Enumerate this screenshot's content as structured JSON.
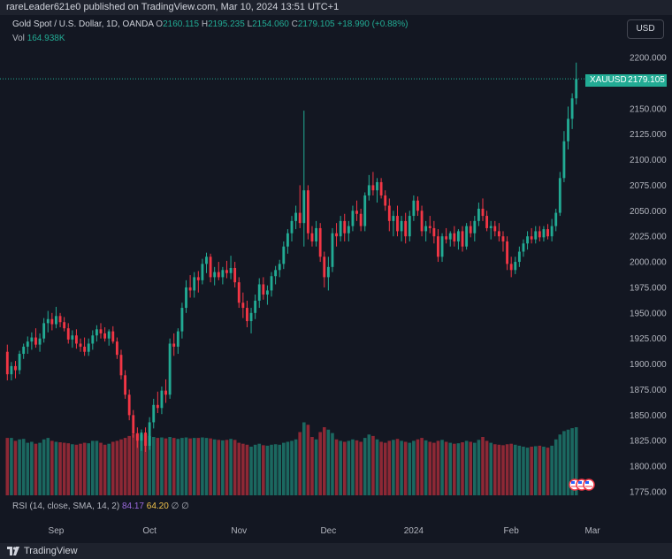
{
  "header": {
    "published_text": "rareLeader621e0 published on TradingView.com, Mar 10, 2024 13:51 UTC+1"
  },
  "legend": {
    "symbol_desc": "Gold Spot / U.S. Dollar, 1D, OANDA",
    "o_label": "O",
    "o_value": "2160.115",
    "h_label": "H",
    "h_value": "2195.235",
    "l_label": "L",
    "l_value": "2154.060",
    "c_label": "C",
    "c_value": "2179.105",
    "change": "+18.990 (+0.88%)",
    "vol_label": "Vol",
    "vol_value": "164.938K"
  },
  "currency_button": "USD",
  "price_tag": {
    "symbol": "XAUUSD",
    "value": "2179.105"
  },
  "rsi": {
    "label": "RSI (14, close, SMA, 14, 2)",
    "value1": "84.17",
    "value2": "64.20",
    "icon1": "∅",
    "icon2": "∅"
  },
  "footer": {
    "brand": "TradingView"
  },
  "colors": {
    "background": "#131722",
    "up": "#22ab94",
    "down": "#f23645",
    "up_volume": "#22ab94",
    "down_volume": "#f23645",
    "text": "#d1d4dc",
    "axis_text": "#b2b5be"
  },
  "chart_data": {
    "type": "candlestick",
    "symbol": "XAUUSD",
    "interval": "1D",
    "y_axis": {
      "ylim": [
        1765,
        2210
      ],
      "ticks": [
        1775,
        1800,
        1825,
        1850,
        1875,
        1900,
        1925,
        1950,
        1975,
        2000,
        2025,
        2050,
        2075,
        2100,
        2125,
        2150,
        2175,
        2200
      ],
      "tick_labels": [
        "1775.000",
        "1800.000",
        "1825.000",
        "1850.000",
        "1875.000",
        "1900.000",
        "1925.000",
        "1950.000",
        "1975.000",
        "2000.000",
        "2025.000",
        "2050.000",
        "2075.000",
        "2100.000",
        "2125.000",
        "2150.000",
        "2175.000",
        "2200.000"
      ],
      "position": "right"
    },
    "x_axis": {
      "labels": [
        "Sep",
        "Oct",
        "Nov",
        "Dec",
        "2024",
        "Feb",
        "Mar"
      ],
      "label_bar_index": [
        12,
        35,
        57,
        79,
        100,
        124,
        144
      ]
    },
    "last_price": 2179.105,
    "volume_ylim": [
      0,
      200
    ],
    "grid": false,
    "candles": [
      {
        "o": 1912,
        "h": 1919,
        "l": 1884,
        "c": 1890,
        "v": 118
      },
      {
        "o": 1890,
        "h": 1902,
        "l": 1884,
        "c": 1898,
        "v": 118
      },
      {
        "o": 1898,
        "h": 1903,
        "l": 1886,
        "c": 1894,
        "v": 112
      },
      {
        "o": 1894,
        "h": 1913,
        "l": 1890,
        "c": 1910,
        "v": 115
      },
      {
        "o": 1910,
        "h": 1920,
        "l": 1905,
        "c": 1917,
        "v": 116
      },
      {
        "o": 1917,
        "h": 1927,
        "l": 1910,
        "c": 1922,
        "v": 108
      },
      {
        "o": 1922,
        "h": 1931,
        "l": 1914,
        "c": 1926,
        "v": 110
      },
      {
        "o": 1926,
        "h": 1935,
        "l": 1916,
        "c": 1919,
        "v": 106
      },
      {
        "o": 1919,
        "h": 1930,
        "l": 1912,
        "c": 1925,
        "v": 108
      },
      {
        "o": 1925,
        "h": 1945,
        "l": 1921,
        "c": 1940,
        "v": 115
      },
      {
        "o": 1940,
        "h": 1952,
        "l": 1931,
        "c": 1944,
        "v": 118
      },
      {
        "o": 1944,
        "h": 1950,
        "l": 1933,
        "c": 1939,
        "v": 112
      },
      {
        "o": 1939,
        "h": 1956,
        "l": 1935,
        "c": 1947,
        "v": 110
      },
      {
        "o": 1947,
        "h": 1950,
        "l": 1936,
        "c": 1941,
        "v": 109
      },
      {
        "o": 1941,
        "h": 1946,
        "l": 1932,
        "c": 1935,
        "v": 108
      },
      {
        "o": 1935,
        "h": 1940,
        "l": 1920,
        "c": 1924,
        "v": 107
      },
      {
        "o": 1924,
        "h": 1933,
        "l": 1916,
        "c": 1928,
        "v": 105
      },
      {
        "o": 1928,
        "h": 1934,
        "l": 1915,
        "c": 1920,
        "v": 104
      },
      {
        "o": 1920,
        "h": 1925,
        "l": 1912,
        "c": 1917,
        "v": 106
      },
      {
        "o": 1917,
        "h": 1926,
        "l": 1908,
        "c": 1912,
        "v": 108
      },
      {
        "o": 1912,
        "h": 1925,
        "l": 1908,
        "c": 1920,
        "v": 107
      },
      {
        "o": 1920,
        "h": 1933,
        "l": 1914,
        "c": 1928,
        "v": 112
      },
      {
        "o": 1928,
        "h": 1938,
        "l": 1922,
        "c": 1934,
        "v": 112
      },
      {
        "o": 1934,
        "h": 1940,
        "l": 1925,
        "c": 1930,
        "v": 108
      },
      {
        "o": 1930,
        "h": 1936,
        "l": 1922,
        "c": 1925,
        "v": 104
      },
      {
        "o": 1925,
        "h": 1934,
        "l": 1918,
        "c": 1932,
        "v": 106
      },
      {
        "o": 1932,
        "h": 1937,
        "l": 1920,
        "c": 1922,
        "v": 110
      },
      {
        "o": 1922,
        "h": 1926,
        "l": 1905,
        "c": 1909,
        "v": 112
      },
      {
        "o": 1909,
        "h": 1914,
        "l": 1885,
        "c": 1889,
        "v": 115
      },
      {
        "o": 1889,
        "h": 1894,
        "l": 1866,
        "c": 1870,
        "v": 118
      },
      {
        "o": 1870,
        "h": 1875,
        "l": 1845,
        "c": 1850,
        "v": 122
      },
      {
        "o": 1850,
        "h": 1855,
        "l": 1828,
        "c": 1832,
        "v": 126
      },
      {
        "o": 1832,
        "h": 1838,
        "l": 1818,
        "c": 1825,
        "v": 128
      },
      {
        "o": 1825,
        "h": 1836,
        "l": 1815,
        "c": 1833,
        "v": 125
      },
      {
        "o": 1833,
        "h": 1838,
        "l": 1814,
        "c": 1820,
        "v": 126
      },
      {
        "o": 1820,
        "h": 1848,
        "l": 1816,
        "c": 1843,
        "v": 122
      },
      {
        "o": 1843,
        "h": 1866,
        "l": 1837,
        "c": 1860,
        "v": 120
      },
      {
        "o": 1860,
        "h": 1873,
        "l": 1852,
        "c": 1857,
        "v": 118
      },
      {
        "o": 1857,
        "h": 1878,
        "l": 1851,
        "c": 1874,
        "v": 119
      },
      {
        "o": 1874,
        "h": 1885,
        "l": 1862,
        "c": 1870,
        "v": 117
      },
      {
        "o": 1870,
        "h": 1925,
        "l": 1866,
        "c": 1920,
        "v": 120
      },
      {
        "o": 1920,
        "h": 1930,
        "l": 1908,
        "c": 1917,
        "v": 118
      },
      {
        "o": 1917,
        "h": 1935,
        "l": 1910,
        "c": 1932,
        "v": 116
      },
      {
        "o": 1932,
        "h": 1960,
        "l": 1925,
        "c": 1955,
        "v": 118
      },
      {
        "o": 1955,
        "h": 1982,
        "l": 1950,
        "c": 1975,
        "v": 119
      },
      {
        "o": 1975,
        "h": 1987,
        "l": 1965,
        "c": 1972,
        "v": 117
      },
      {
        "o": 1972,
        "h": 1990,
        "l": 1965,
        "c": 1985,
        "v": 118
      },
      {
        "o": 1985,
        "h": 1991,
        "l": 1970,
        "c": 1982,
        "v": 118
      },
      {
        "o": 1982,
        "h": 2003,
        "l": 1978,
        "c": 1998,
        "v": 119
      },
      {
        "o": 1998,
        "h": 2009,
        "l": 1989,
        "c": 2005,
        "v": 118
      },
      {
        "o": 2005,
        "h": 2008,
        "l": 1980,
        "c": 1985,
        "v": 117
      },
      {
        "o": 1985,
        "h": 1995,
        "l": 1977,
        "c": 1990,
        "v": 115
      },
      {
        "o": 1990,
        "h": 2000,
        "l": 1982,
        "c": 1985,
        "v": 114
      },
      {
        "o": 1985,
        "h": 1995,
        "l": 1978,
        "c": 1992,
        "v": 113
      },
      {
        "o": 1992,
        "h": 2001,
        "l": 1984,
        "c": 1989,
        "v": 114
      },
      {
        "o": 1989,
        "h": 2006,
        "l": 1983,
        "c": 1994,
        "v": 116
      },
      {
        "o": 1994,
        "h": 2000,
        "l": 1975,
        "c": 1980,
        "v": 114
      },
      {
        "o": 1980,
        "h": 1985,
        "l": 1955,
        "c": 1960,
        "v": 108
      },
      {
        "o": 1960,
        "h": 1970,
        "l": 1945,
        "c": 1955,
        "v": 106
      },
      {
        "o": 1955,
        "h": 1962,
        "l": 1936,
        "c": 1942,
        "v": 104
      },
      {
        "o": 1942,
        "h": 1955,
        "l": 1930,
        "c": 1950,
        "v": 100
      },
      {
        "o": 1950,
        "h": 1968,
        "l": 1944,
        "c": 1962,
        "v": 104
      },
      {
        "o": 1962,
        "h": 1984,
        "l": 1955,
        "c": 1978,
        "v": 106
      },
      {
        "o": 1978,
        "h": 1985,
        "l": 1963,
        "c": 1968,
        "v": 103
      },
      {
        "o": 1968,
        "h": 1977,
        "l": 1958,
        "c": 1972,
        "v": 102
      },
      {
        "o": 1972,
        "h": 1990,
        "l": 1966,
        "c": 1986,
        "v": 104
      },
      {
        "o": 1986,
        "h": 1996,
        "l": 1978,
        "c": 1992,
        "v": 105
      },
      {
        "o": 1992,
        "h": 2002,
        "l": 1985,
        "c": 1998,
        "v": 104
      },
      {
        "o": 1998,
        "h": 2020,
        "l": 1993,
        "c": 2015,
        "v": 108
      },
      {
        "o": 2015,
        "h": 2032,
        "l": 2008,
        "c": 2028,
        "v": 110
      },
      {
        "o": 2028,
        "h": 2045,
        "l": 2020,
        "c": 2040,
        "v": 112
      },
      {
        "o": 2040,
        "h": 2055,
        "l": 2032,
        "c": 2048,
        "v": 115
      },
      {
        "o": 2048,
        "h": 2075,
        "l": 2033,
        "c": 2038,
        "v": 130
      },
      {
        "o": 2038,
        "h": 2148,
        "l": 2015,
        "c": 2070,
        "v": 150
      },
      {
        "o": 2070,
        "h": 2075,
        "l": 2022,
        "c": 2028,
        "v": 145
      },
      {
        "o": 2028,
        "h": 2035,
        "l": 2015,
        "c": 2020,
        "v": 120
      },
      {
        "o": 2020,
        "h": 2040,
        "l": 2015,
        "c": 2033,
        "v": 115
      },
      {
        "o": 2033,
        "h": 2038,
        "l": 2000,
        "c": 2005,
        "v": 130
      },
      {
        "o": 2005,
        "h": 2010,
        "l": 1975,
        "c": 1985,
        "v": 140
      },
      {
        "o": 1985,
        "h": 2005,
        "l": 1972,
        "c": 1995,
        "v": 135
      },
      {
        "o": 1995,
        "h": 2033,
        "l": 1990,
        "c": 2028,
        "v": 128
      },
      {
        "o": 2028,
        "h": 2038,
        "l": 2015,
        "c": 2025,
        "v": 115
      },
      {
        "o": 2025,
        "h": 2045,
        "l": 2020,
        "c": 2040,
        "v": 112
      },
      {
        "o": 2040,
        "h": 2047,
        "l": 2020,
        "c": 2028,
        "v": 110
      },
      {
        "o": 2028,
        "h": 2040,
        "l": 2020,
        "c": 2035,
        "v": 112
      },
      {
        "o": 2035,
        "h": 2055,
        "l": 2030,
        "c": 2050,
        "v": 115
      },
      {
        "o": 2050,
        "h": 2060,
        "l": 2040,
        "c": 2047,
        "v": 113
      },
      {
        "o": 2047,
        "h": 2052,
        "l": 2030,
        "c": 2035,
        "v": 110
      },
      {
        "o": 2035,
        "h": 2068,
        "l": 2030,
        "c": 2065,
        "v": 118
      },
      {
        "o": 2065,
        "h": 2085,
        "l": 2060,
        "c": 2075,
        "v": 125
      },
      {
        "o": 2075,
        "h": 2088,
        "l": 2065,
        "c": 2070,
        "v": 122
      },
      {
        "o": 2070,
        "h": 2082,
        "l": 2058,
        "c": 2078,
        "v": 115
      },
      {
        "o": 2078,
        "h": 2082,
        "l": 2062,
        "c": 2065,
        "v": 110
      },
      {
        "o": 2065,
        "h": 2070,
        "l": 2050,
        "c": 2055,
        "v": 108
      },
      {
        "o": 2055,
        "h": 2062,
        "l": 2030,
        "c": 2040,
        "v": 112
      },
      {
        "o": 2040,
        "h": 2050,
        "l": 2025,
        "c": 2045,
        "v": 114
      },
      {
        "o": 2045,
        "h": 2055,
        "l": 2025,
        "c": 2030,
        "v": 116
      },
      {
        "o": 2030,
        "h": 2045,
        "l": 2020,
        "c": 2040,
        "v": 112
      },
      {
        "o": 2040,
        "h": 2048,
        "l": 2018,
        "c": 2025,
        "v": 110
      },
      {
        "o": 2025,
        "h": 2050,
        "l": 2020,
        "c": 2045,
        "v": 108
      },
      {
        "o": 2045,
        "h": 2065,
        "l": 2040,
        "c": 2060,
        "v": 112
      },
      {
        "o": 2060,
        "h": 2064,
        "l": 2045,
        "c": 2050,
        "v": 115
      },
      {
        "o": 2050,
        "h": 2055,
        "l": 2025,
        "c": 2030,
        "v": 118
      },
      {
        "o": 2030,
        "h": 2040,
        "l": 2020,
        "c": 2035,
        "v": 113
      },
      {
        "o": 2035,
        "h": 2045,
        "l": 2028,
        "c": 2033,
        "v": 110
      },
      {
        "o": 2033,
        "h": 2040,
        "l": 2018,
        "c": 2025,
        "v": 108
      },
      {
        "o": 2025,
        "h": 2032,
        "l": 2000,
        "c": 2005,
        "v": 112
      },
      {
        "o": 2005,
        "h": 2028,
        "l": 2000,
        "c": 2025,
        "v": 114
      },
      {
        "o": 2025,
        "h": 2033,
        "l": 2018,
        "c": 2022,
        "v": 110
      },
      {
        "o": 2022,
        "h": 2030,
        "l": 2015,
        "c": 2028,
        "v": 108
      },
      {
        "o": 2028,
        "h": 2035,
        "l": 2015,
        "c": 2020,
        "v": 106
      },
      {
        "o": 2020,
        "h": 2032,
        "l": 2012,
        "c": 2030,
        "v": 107
      },
      {
        "o": 2030,
        "h": 2035,
        "l": 2010,
        "c": 2015,
        "v": 109
      },
      {
        "o": 2015,
        "h": 2038,
        "l": 2012,
        "c": 2035,
        "v": 112
      },
      {
        "o": 2035,
        "h": 2040,
        "l": 2024,
        "c": 2028,
        "v": 110
      },
      {
        "o": 2028,
        "h": 2045,
        "l": 2020,
        "c": 2040,
        "v": 108
      },
      {
        "o": 2040,
        "h": 2058,
        "l": 2035,
        "c": 2052,
        "v": 114
      },
      {
        "o": 2052,
        "h": 2062,
        "l": 2040,
        "c": 2045,
        "v": 120
      },
      {
        "o": 2045,
        "h": 2050,
        "l": 2030,
        "c": 2033,
        "v": 112
      },
      {
        "o": 2033,
        "h": 2040,
        "l": 2022,
        "c": 2035,
        "v": 108
      },
      {
        "o": 2035,
        "h": 2040,
        "l": 2025,
        "c": 2030,
        "v": 105
      },
      {
        "o": 2030,
        "h": 2038,
        "l": 2020,
        "c": 2025,
        "v": 104
      },
      {
        "o": 2025,
        "h": 2030,
        "l": 2010,
        "c": 2020,
        "v": 103
      },
      {
        "o": 2020,
        "h": 2025,
        "l": 1992,
        "c": 1998,
        "v": 105
      },
      {
        "o": 1998,
        "h": 2005,
        "l": 1985,
        "c": 1992,
        "v": 106
      },
      {
        "o": 1992,
        "h": 2005,
        "l": 1988,
        "c": 2000,
        "v": 104
      },
      {
        "o": 2000,
        "h": 2015,
        "l": 1995,
        "c": 2010,
        "v": 102
      },
      {
        "o": 2010,
        "h": 2022,
        "l": 2005,
        "c": 2018,
        "v": 100
      },
      {
        "o": 2018,
        "h": 2030,
        "l": 2012,
        "c": 2025,
        "v": 98
      },
      {
        "o": 2025,
        "h": 2033,
        "l": 2018,
        "c": 2022,
        "v": 100
      },
      {
        "o": 2022,
        "h": 2035,
        "l": 2018,
        "c": 2030,
        "v": 101
      },
      {
        "o": 2030,
        "h": 2035,
        "l": 2020,
        "c": 2024,
        "v": 102
      },
      {
        "o": 2024,
        "h": 2035,
        "l": 2020,
        "c": 2032,
        "v": 100
      },
      {
        "o": 2032,
        "h": 2037,
        "l": 2022,
        "c": 2025,
        "v": 98
      },
      {
        "o": 2025,
        "h": 2042,
        "l": 2020,
        "c": 2035,
        "v": 102
      },
      {
        "o": 2035,
        "h": 2052,
        "l": 2030,
        "c": 2048,
        "v": 115
      },
      {
        "o": 2048,
        "h": 2088,
        "l": 2045,
        "c": 2082,
        "v": 125
      },
      {
        "o": 2082,
        "h": 2128,
        "l": 2078,
        "c": 2118,
        "v": 132
      },
      {
        "o": 2118,
        "h": 2152,
        "l": 2110,
        "c": 2140,
        "v": 135
      },
      {
        "o": 2140,
        "h": 2165,
        "l": 2130,
        "c": 2160,
        "v": 138
      },
      {
        "o": 2160,
        "h": 2195,
        "l": 2154,
        "c": 2179,
        "v": 140
      }
    ]
  }
}
